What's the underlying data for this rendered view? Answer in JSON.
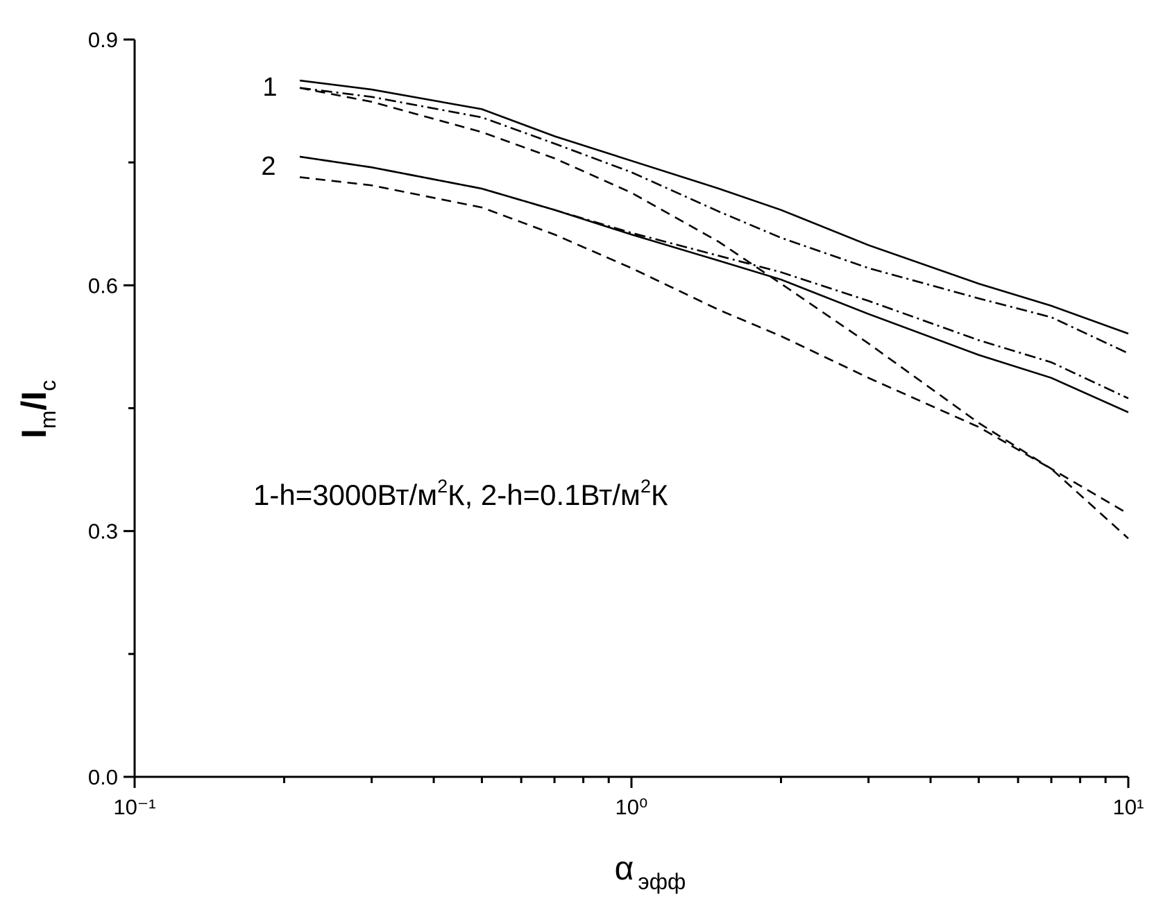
{
  "chart_data": {
    "type": "line",
    "x": [
      0.215,
      0.3,
      0.5,
      0.7,
      1,
      1.5,
      2,
      3,
      5,
      7,
      10
    ],
    "series": [
      {
        "color": "#000000",
        "dash": "solid",
        "values": [
          0.85,
          0.839,
          0.815,
          0.782,
          0.752,
          0.718,
          0.692,
          0.649,
          0.602,
          0.575,
          0.541
        ]
      },
      {
        "color": "#000000",
        "dash": "dashdot",
        "values": [
          0.841,
          0.83,
          0.805,
          0.773,
          0.738,
          0.69,
          0.658,
          0.621,
          0.584,
          0.561,
          0.517
        ]
      },
      {
        "color": "#000000",
        "dash": "dash",
        "values": [
          0.841,
          0.824,
          0.787,
          0.755,
          0.713,
          0.653,
          0.602,
          0.529,
          0.432,
          0.376,
          0.321
        ]
      },
      {
        "color": "#000000",
        "dash": "solid",
        "values": [
          0.757,
          0.744,
          0.718,
          0.692,
          0.662,
          0.63,
          0.607,
          0.565,
          0.515,
          0.487,
          0.445
        ]
      },
      {
        "color": "#000000",
        "dash": "dashdot",
        "values": [
          0.757,
          0.744,
          0.718,
          0.692,
          0.664,
          0.636,
          0.616,
          0.581,
          0.533,
          0.506,
          0.462
        ]
      },
      {
        "color": "#000000",
        "dash": "dash",
        "values": [
          0.732,
          0.722,
          0.695,
          0.662,
          0.621,
          0.57,
          0.538,
          0.487,
          0.427,
          0.376,
          0.291
        ]
      }
    ],
    "xlim": [
      0.1,
      10
    ],
    "xlog": true,
    "xticks": [
      {
        "value": 0.1,
        "label": "10⁻¹"
      },
      {
        "value": 1,
        "label": "10⁰"
      },
      {
        "value": 10,
        "label": "10¹"
      }
    ],
    "xminor": [
      0.2,
      0.3,
      0.4,
      0.5,
      0.6,
      0.7,
      0.8,
      0.9,
      2,
      3,
      4,
      5,
      6,
      7,
      8,
      9
    ],
    "ylim": [
      0,
      0.9
    ],
    "yticks": [
      {
        "value": 0,
        "label": "0.0"
      },
      0.3,
      0.6,
      0.9
    ],
    "yminor": [
      0.15,
      0.45,
      0.75
    ],
    "ylabel": [
      "I",
      "m",
      "/I",
      "c"
    ],
    "xlabel": [
      "α",
      "эфф"
    ],
    "curve_labels": [
      "1",
      "2"
    ],
    "note": [
      "1-h=3000Вт/м",
      "2",
      "К, 2-h=0.1Вт/м",
      "2",
      "К"
    ]
  }
}
